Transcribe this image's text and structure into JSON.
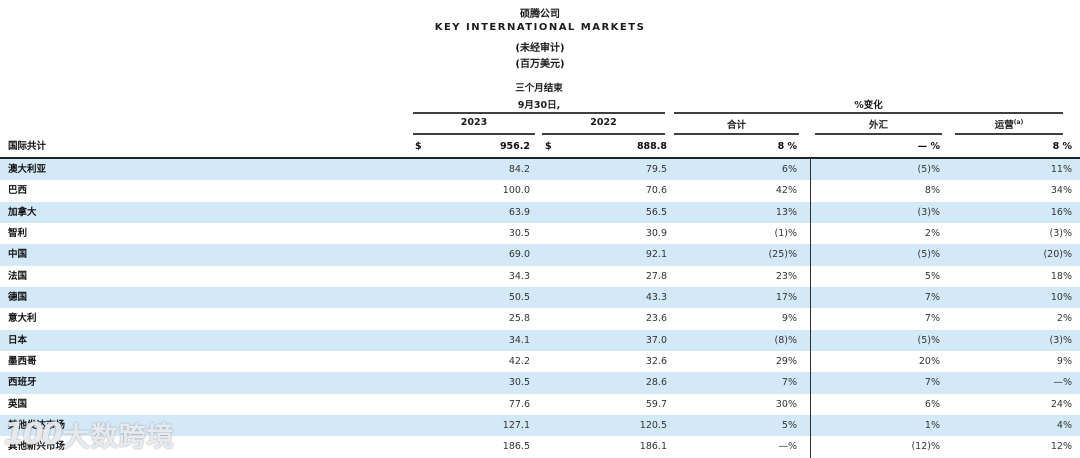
{
  "titles": {
    "company": "硕腾公司",
    "report": "KEY INTERNATIONAL MARKETS",
    "unaudited": "(未经审计)",
    "units": "(百万美元)"
  },
  "group_headers": {
    "period_line1": "三个月结束",
    "period_line2": "9月30日,",
    "pct_change": "%变化"
  },
  "column_headers": {
    "y2023": "2023",
    "y2022": "2022",
    "total": "合计",
    "fx": "外汇",
    "op": "运营",
    "op_note": "(a)"
  },
  "total_row": {
    "label": "国际共计",
    "cur1": "$",
    "y2023": "956.2",
    "cur2": "$",
    "y2022": "888.8",
    "total": "8 %",
    "fx": "— %",
    "op": "8 %"
  },
  "rows": [
    {
      "label": "澳大利亚",
      "y2023": "84.2",
      "y2022": "79.5",
      "total": "6%",
      "fx": "(5)%",
      "op": "11%"
    },
    {
      "label": "巴西",
      "y2023": "100.0",
      "y2022": "70.6",
      "total": "42%",
      "fx": "8%",
      "op": "34%"
    },
    {
      "label": "加拿大",
      "y2023": "63.9",
      "y2022": "56.5",
      "total": "13%",
      "fx": "(3)%",
      "op": "16%"
    },
    {
      "label": "智利",
      "y2023": "30.5",
      "y2022": "30.9",
      "total": "(1)%",
      "fx": "2%",
      "op": "(3)%"
    },
    {
      "label": "中国",
      "y2023": "69.0",
      "y2022": "92.1",
      "total": "(25)%",
      "fx": "(5)%",
      "op": "(20)%"
    },
    {
      "label": "法国",
      "y2023": "34.3",
      "y2022": "27.8",
      "total": "23%",
      "fx": "5%",
      "op": "18%"
    },
    {
      "label": "德国",
      "y2023": "50.5",
      "y2022": "43.3",
      "total": "17%",
      "fx": "7%",
      "op": "10%"
    },
    {
      "label": "意大利",
      "y2023": "25.8",
      "y2022": "23.6",
      "total": "9%",
      "fx": "7%",
      "op": "2%"
    },
    {
      "label": "日本",
      "y2023": "34.1",
      "y2022": "37.0",
      "total": "(8)%",
      "fx": "(5)%",
      "op": "(3)%"
    },
    {
      "label": "墨西哥",
      "y2023": "42.2",
      "y2022": "32.6",
      "total": "29%",
      "fx": "20%",
      "op": "9%"
    },
    {
      "label": "西班牙",
      "y2023": "30.5",
      "y2022": "28.6",
      "total": "7%",
      "fx": "7%",
      "op": "—%"
    },
    {
      "label": "英国",
      "y2023": "77.6",
      "y2022": "59.7",
      "total": "30%",
      "fx": "6%",
      "op": "24%"
    },
    {
      "label": "其他发达市场",
      "y2023": "127.1",
      "y2022": "120.5",
      "total": "5%",
      "fx": "1%",
      "op": "4%"
    },
    {
      "label": "其他新兴市场",
      "y2023": "186.5",
      "y2022": "186.1",
      "total": "—%",
      "fx": "(12)%",
      "op": "12%"
    }
  ],
  "watermark": {
    "logo": "100",
    "text": "大数跨境"
  },
  "colors": {
    "stripe_blue": "#d4e9f8",
    "rule_dark": "#3f3f3f",
    "total_border": "#1d242b"
  }
}
